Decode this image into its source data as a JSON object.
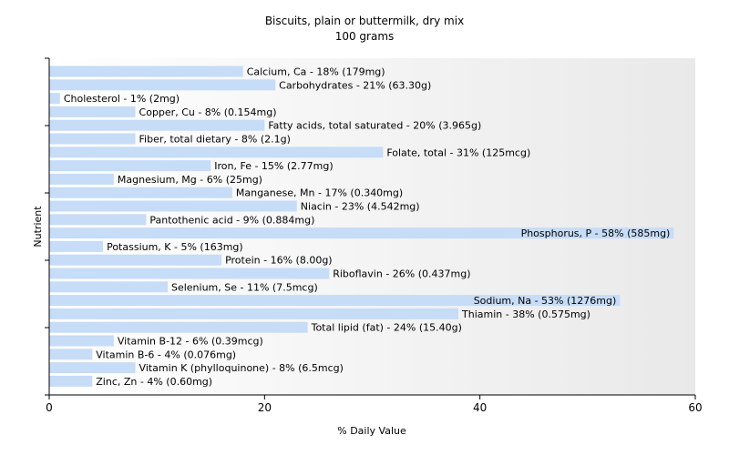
{
  "chart_data": {
    "type": "bar",
    "orientation": "horizontal",
    "title": "Biscuits, plain or buttermilk, dry mix",
    "subtitle": "100 grams",
    "xlabel": "% Daily Value",
    "ylabel": "Nutrient",
    "xlim": [
      0,
      60
    ],
    "xticks": [
      "0",
      "20",
      "40",
      "60"
    ],
    "bar_color": "#c6dcf7",
    "background_gradient": [
      "#ffffff",
      "#e9e9e9"
    ],
    "grid": false,
    "categories": [
      "Calcium, Ca",
      "Carbohydrates",
      "Cholesterol",
      "Copper, Cu",
      "Fatty acids, total saturated",
      "Fiber, total dietary",
      "Folate, total",
      "Iron, Fe",
      "Magnesium, Mg",
      "Manganese, Mn",
      "Niacin",
      "Pantothenic acid",
      "Phosphorus, P",
      "Potassium, K",
      "Protein",
      "Riboflavin",
      "Selenium, Se",
      "Sodium, Na",
      "Thiamin",
      "Total lipid (fat)",
      "Vitamin B-12",
      "Vitamin B-6",
      "Vitamin K (phylloquinone)",
      "Zinc, Zn"
    ],
    "values": [
      18,
      21,
      1,
      8,
      20,
      8,
      31,
      15,
      6,
      17,
      23,
      9,
      58,
      5,
      16,
      26,
      11,
      53,
      38,
      24,
      6,
      4,
      8,
      4
    ],
    "labels": [
      "Calcium, Ca - 18% (179mg)",
      "Carbohydrates - 21% (63.30g)",
      "Cholesterol - 1% (2mg)",
      "Copper, Cu - 8% (0.154mg)",
      "Fatty acids, total saturated - 20% (3.965g)",
      "Fiber, total dietary - 8% (2.1g)",
      "Folate, total - 31% (125mcg)",
      "Iron, Fe - 15% (2.77mg)",
      "Magnesium, Mg - 6% (25mg)",
      "Manganese, Mn - 17% (0.340mg)",
      "Niacin - 23% (4.542mg)",
      "Pantothenic acid - 9% (0.884mg)",
      "Phosphorus, P - 58% (585mg)",
      "Potassium, K - 5% (163mg)",
      "Protein - 16% (8.00g)",
      "Riboflavin - 26% (0.437mg)",
      "Selenium, Se - 11% (7.5mcg)",
      "Sodium, Na - 53% (1276mg)",
      "Thiamin - 38% (0.575mg)",
      "Total lipid (fat) - 24% (15.40g)",
      "Vitamin B-12 - 6% (0.39mcg)",
      "Vitamin B-6 - 4% (0.076mg)",
      "Vitamin K (phylloquinone) - 8% (6.5mcg)",
      "Zinc, Zn - 4% (0.60mg)"
    ]
  }
}
